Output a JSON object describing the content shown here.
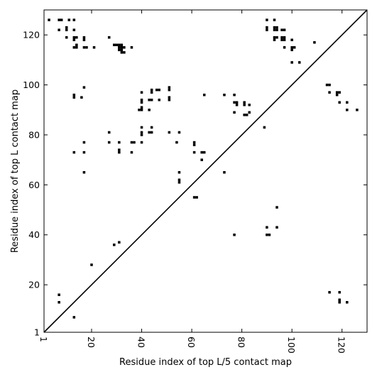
{
  "chart_data": {
    "type": "scatter",
    "xlabel": "Residue index of top L/5 contact map",
    "ylabel": "Residue index of top L contact map",
    "xlim": [
      1,
      130
    ],
    "ylim": [
      1,
      130
    ],
    "x_ticks": [
      1,
      20,
      40,
      60,
      80,
      100,
      120
    ],
    "y_ticks": [
      1,
      20,
      40,
      60,
      80,
      100,
      120
    ],
    "x_tick_rotation": 90,
    "grid": false,
    "diagonal_line": true,
    "marker": "filled-square",
    "marker_color": "#000000",
    "series": [
      {
        "points": [
          [
            3,
            126
          ],
          [
            7,
            126
          ],
          [
            8,
            126
          ],
          [
            11,
            126
          ],
          [
            13,
            126
          ],
          [
            7,
            122
          ],
          [
            10,
            122
          ],
          [
            10,
            123
          ],
          [
            13,
            122
          ],
          [
            10,
            119
          ],
          [
            13,
            119
          ],
          [
            13,
            118
          ],
          [
            14,
            119
          ],
          [
            17,
            118
          ],
          [
            17,
            119
          ],
          [
            13,
            115
          ],
          [
            14,
            115
          ],
          [
            14,
            116
          ],
          [
            17,
            115
          ],
          [
            18,
            115
          ],
          [
            21,
            115
          ],
          [
            27,
            119
          ],
          [
            29,
            116
          ],
          [
            30,
            116
          ],
          [
            31,
            116
          ],
          [
            32,
            116
          ],
          [
            31,
            115
          ],
          [
            32,
            115
          ],
          [
            33,
            115
          ],
          [
            31,
            114
          ],
          [
            32,
            114
          ],
          [
            32,
            113
          ],
          [
            33,
            113
          ],
          [
            36,
            115
          ],
          [
            17,
            99
          ],
          [
            13,
            96
          ],
          [
            13,
            95
          ],
          [
            16,
            95
          ],
          [
            27,
            81
          ],
          [
            27,
            77
          ],
          [
            13,
            73
          ],
          [
            17,
            77
          ],
          [
            17,
            73
          ],
          [
            31,
            77
          ],
          [
            31,
            74
          ],
          [
            31,
            73
          ],
          [
            36,
            77
          ],
          [
            37,
            77
          ],
          [
            36,
            73
          ],
          [
            40,
            77
          ],
          [
            17,
            65
          ],
          [
            40,
            97
          ],
          [
            40,
            94
          ],
          [
            40,
            93
          ],
          [
            39,
            90
          ],
          [
            40,
            90
          ],
          [
            40,
            91
          ],
          [
            43,
            90
          ],
          [
            44,
            98
          ],
          [
            44,
            97
          ],
          [
            46,
            98
          ],
          [
            47,
            98
          ],
          [
            43,
            94
          ],
          [
            44,
            94
          ],
          [
            47,
            94
          ],
          [
            51,
            99
          ],
          [
            51,
            98
          ],
          [
            51,
            95
          ],
          [
            51,
            94
          ],
          [
            40,
            83
          ],
          [
            40,
            81
          ],
          [
            40,
            80
          ],
          [
            43,
            81
          ],
          [
            44,
            81
          ],
          [
            44,
            83
          ],
          [
            51,
            81
          ],
          [
            55,
            81
          ],
          [
            54,
            77
          ],
          [
            61,
            77
          ],
          [
            61,
            76
          ],
          [
            61,
            73
          ],
          [
            64,
            73
          ],
          [
            65,
            73
          ],
          [
            64,
            70
          ],
          [
            65,
            96
          ],
          [
            55,
            65
          ],
          [
            55,
            62
          ],
          [
            55,
            61
          ],
          [
            61,
            55
          ],
          [
            62,
            55
          ],
          [
            73,
            96
          ],
          [
            77,
            96
          ],
          [
            77,
            93
          ],
          [
            78,
            93
          ],
          [
            78,
            92
          ],
          [
            77,
            89
          ],
          [
            81,
            93
          ],
          [
            81,
            92
          ],
          [
            81,
            88
          ],
          [
            82,
            88
          ],
          [
            83,
            89
          ],
          [
            83,
            92
          ],
          [
            73,
            65
          ],
          [
            89,
            83
          ],
          [
            90,
            126
          ],
          [
            93,
            126
          ],
          [
            90,
            123
          ],
          [
            90,
            122
          ],
          [
            93,
            123
          ],
          [
            94,
            123
          ],
          [
            93,
            122
          ],
          [
            94,
            122
          ],
          [
            96,
            122
          ],
          [
            97,
            122
          ],
          [
            93,
            119
          ],
          [
            94,
            119
          ],
          [
            93,
            118
          ],
          [
            96,
            119
          ],
          [
            97,
            119
          ],
          [
            96,
            118
          ],
          [
            97,
            118
          ],
          [
            97,
            115
          ],
          [
            100,
            118
          ],
          [
            100,
            115
          ],
          [
            101,
            115
          ],
          [
            100,
            114
          ],
          [
            109,
            117
          ],
          [
            100,
            109
          ],
          [
            103,
            109
          ],
          [
            114,
            100
          ],
          [
            115,
            100
          ],
          [
            115,
            97
          ],
          [
            118,
            97
          ],
          [
            119,
            97
          ],
          [
            118,
            96
          ],
          [
            119,
            93
          ],
          [
            122,
            93
          ],
          [
            122,
            90
          ],
          [
            126,
            90
          ],
          [
            29,
            36
          ],
          [
            31,
            37
          ],
          [
            20,
            28
          ],
          [
            77,
            40
          ],
          [
            90,
            43
          ],
          [
            90,
            40
          ],
          [
            91,
            40
          ],
          [
            94,
            43
          ],
          [
            94,
            51
          ],
          [
            7,
            16
          ],
          [
            7,
            13
          ],
          [
            13,
            7
          ],
          [
            115,
            17
          ],
          [
            119,
            17
          ],
          [
            119,
            14
          ],
          [
            119,
            13
          ],
          [
            122,
            13
          ]
        ]
      }
    ]
  }
}
